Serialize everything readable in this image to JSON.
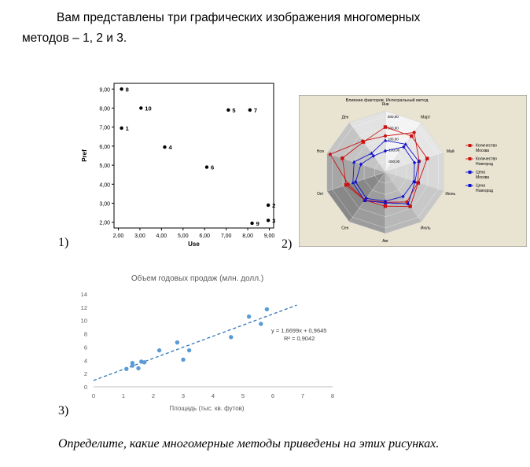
{
  "intro": {
    "line1": "Вам представлены три графических изображения многомерных",
    "line2": "методов – 1, 2 и 3."
  },
  "figure_labels": [
    "1)",
    "2)",
    "3)"
  ],
  "question": "Определите, какие многомерные методы приведены на этих рисунках.",
  "chart_data": [
    {
      "type": "scatter",
      "xlabel": "Use",
      "ylabel": "Pref",
      "xlim": [
        1.8,
        9.2
      ],
      "ylim": [
        1.7,
        9.3
      ],
      "xticks": [
        "2,00",
        "3,00",
        "4,00",
        "5,00",
        "6,00",
        "7,00",
        "8,00",
        "9,00"
      ],
      "yticks": [
        "2,00",
        "3,00",
        "4,00",
        "5,00",
        "6,00",
        "7,00",
        "8,00",
        "9,00"
      ],
      "points": [
        {
          "label": "1",
          "x": 2.15,
          "y": 6.95
        },
        {
          "label": "2",
          "x": 8.95,
          "y": 2.9
        },
        {
          "label": "3",
          "x": 8.95,
          "y": 2.1
        },
        {
          "label": "4",
          "x": 4.15,
          "y": 5.95
        },
        {
          "label": "5",
          "x": 7.1,
          "y": 7.9
        },
        {
          "label": "6",
          "x": 6.1,
          "y": 4.9
        },
        {
          "label": "7",
          "x": 8.1,
          "y": 7.9
        },
        {
          "label": "8",
          "x": 2.15,
          "y": 9.0
        },
        {
          "label": "9",
          "x": 8.2,
          "y": 1.95
        },
        {
          "label": "10",
          "x": 3.05,
          "y": 8.0
        }
      ],
      "grid": false
    },
    {
      "type": "radar",
      "title": "Влияние факторов. Интегральный метод",
      "categories": [
        "Янв",
        "Март",
        "Май",
        "Июнь",
        "Июль",
        "Авг",
        "Сен",
        "Окт",
        "Ноя",
        "Дек"
      ],
      "scale_ticks": [
        "500,00",
        "300,00",
        "100,00",
        "-100,00",
        "-300,00"
      ],
      "series": [
        {
          "name": "Количество Москва",
          "color": "#cc1111",
          "marker": "square",
          "values": [
            310,
            300,
            290,
            120,
            260,
            110,
            120,
            240,
            310,
            170
          ]
        },
        {
          "name": "Количество Новгород",
          "color": "#cc1111",
          "marker": "circle",
          "values": [
            150,
            380,
            140,
            110,
            160,
            40,
            120,
            200,
            540,
            190
          ]
        },
        {
          "name": "Цена Москва",
          "color": "#1111cc",
          "marker": "triangle",
          "values": [
            70,
            120,
            130,
            60,
            200,
            50,
            130,
            110,
            90,
            -80
          ]
        },
        {
          "name": "Цена Новгород",
          "color": "#1111cc",
          "marker": "diamond",
          "values": [
            -120,
            60,
            50,
            40,
            40,
            20,
            80,
            60,
            -40,
            -140
          ]
        }
      ]
    },
    {
      "type": "scatter",
      "title": "Объем годовых продаж (млн. долл.)",
      "xlabel": "Площадь (тыс. кв. футов)",
      "ylabel": "",
      "xlim": [
        0,
        8
      ],
      "ylim": [
        0,
        14
      ],
      "xticks": [
        "0",
        "1",
        "2",
        "3",
        "4",
        "5",
        "6",
        "7",
        "8"
      ],
      "yticks": [
        "0",
        "2",
        "4",
        "6",
        "8",
        "10",
        "12",
        "14"
      ],
      "points": [
        {
          "x": 1.1,
          "y": 2.7
        },
        {
          "x": 1.3,
          "y": 3.2
        },
        {
          "x": 1.3,
          "y": 3.6
        },
        {
          "x": 1.5,
          "y": 2.8
        },
        {
          "x": 1.6,
          "y": 3.8
        },
        {
          "x": 1.7,
          "y": 3.7
        },
        {
          "x": 2.2,
          "y": 5.5
        },
        {
          "x": 2.8,
          "y": 6.7
        },
        {
          "x": 3.0,
          "y": 4.1
        },
        {
          "x": 3.2,
          "y": 5.5
        },
        {
          "x": 4.6,
          "y": 7.5
        },
        {
          "x": 5.2,
          "y": 10.6
        },
        {
          "x": 5.6,
          "y": 9.5
        },
        {
          "x": 5.8,
          "y": 11.7
        }
      ],
      "trendline": {
        "slope": 1.6699,
        "intercept": 0.9645,
        "x_range": [
          0,
          6.8
        ],
        "style": "dashed"
      },
      "annotation": [
        "y = 1,6699x + 0,9645",
        "R² = 0,9042"
      ],
      "color": "#5b9bd5"
    }
  ]
}
